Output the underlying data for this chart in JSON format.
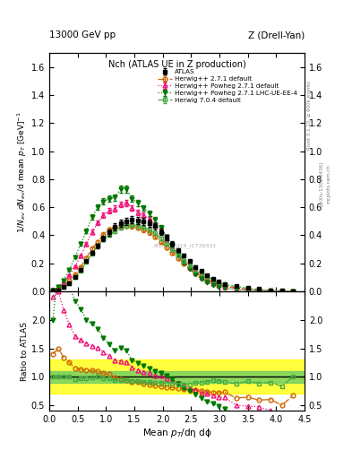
{
  "title_top": "13000 GeV pp",
  "title_right": "Z (Drell-Yan)",
  "panel_title": "Nch (ATLAS UE in Z production)",
  "xlabel": "Mean $p_T$/dη dϕ",
  "ylabel_main": "$1/N_{ev}$ $dN_{ev}$/d mean $p_T$ [GeV]$^{-1}$",
  "ylabel_ratio": "Ratio to ATLAS",
  "watermark": "ATLAS_2019_I1736531",
  "rivet_label": "Rivet 3.1.10, ≥ 600k events",
  "arxiv_label": "[arXiv:1306.3436]",
  "mcplots_label": "mcplots.cern.ch",
  "xlim": [
    0,
    4.5
  ],
  "ylim_main": [
    0,
    1.7
  ],
  "ylim_ratio": [
    0.4,
    2.5
  ],
  "atlas_x": [
    0.065,
    0.16,
    0.255,
    0.355,
    0.455,
    0.555,
    0.655,
    0.755,
    0.855,
    0.955,
    1.055,
    1.155,
    1.26,
    1.36,
    1.46,
    1.56,
    1.665,
    1.765,
    1.865,
    1.97,
    2.07,
    2.17,
    2.275,
    2.375,
    2.475,
    2.58,
    2.68,
    2.785,
    2.885,
    2.99,
    3.095,
    3.295,
    3.5,
    3.7,
    3.9,
    4.1,
    4.3
  ],
  "atlas_y": [
    0.005,
    0.01,
    0.03,
    0.06,
    0.105,
    0.155,
    0.215,
    0.275,
    0.325,
    0.38,
    0.42,
    0.46,
    0.485,
    0.5,
    0.51,
    0.505,
    0.5,
    0.485,
    0.465,
    0.425,
    0.385,
    0.34,
    0.295,
    0.255,
    0.215,
    0.175,
    0.145,
    0.115,
    0.09,
    0.07,
    0.055,
    0.04,
    0.025,
    0.017,
    0.01,
    0.006,
    0.003
  ],
  "hw271_x": [
    0.065,
    0.16,
    0.255,
    0.355,
    0.455,
    0.555,
    0.655,
    0.755,
    0.855,
    0.955,
    1.055,
    1.155,
    1.26,
    1.36,
    1.46,
    1.56,
    1.665,
    1.765,
    1.865,
    1.97,
    2.07,
    2.17,
    2.275,
    2.375,
    2.475,
    2.58,
    2.68,
    2.785,
    2.885,
    2.99,
    3.095,
    3.295,
    3.5,
    3.7,
    3.9,
    4.1,
    4.3
  ],
  "hw271_y": [
    0.007,
    0.015,
    0.04,
    0.075,
    0.12,
    0.175,
    0.24,
    0.305,
    0.355,
    0.405,
    0.44,
    0.455,
    0.465,
    0.47,
    0.465,
    0.455,
    0.44,
    0.42,
    0.39,
    0.355,
    0.315,
    0.275,
    0.235,
    0.2,
    0.165,
    0.135,
    0.11,
    0.085,
    0.065,
    0.05,
    0.04,
    0.025,
    0.016,
    0.01,
    0.006,
    0.003,
    0.002
  ],
  "hw271p_x": [
    0.065,
    0.16,
    0.255,
    0.355,
    0.455,
    0.555,
    0.655,
    0.755,
    0.855,
    0.955,
    1.055,
    1.155,
    1.26,
    1.36,
    1.46,
    1.56,
    1.665,
    1.765,
    1.865,
    1.97,
    2.07,
    2.17,
    2.275,
    2.375,
    2.475,
    2.58,
    2.68,
    2.785,
    2.885,
    2.99,
    3.095,
    3.295,
    3.5,
    3.7,
    3.9,
    4.1,
    4.3
  ],
  "hw271p_y": [
    0.012,
    0.025,
    0.065,
    0.115,
    0.18,
    0.255,
    0.34,
    0.425,
    0.49,
    0.545,
    0.575,
    0.59,
    0.62,
    0.63,
    0.595,
    0.565,
    0.545,
    0.515,
    0.475,
    0.43,
    0.375,
    0.32,
    0.265,
    0.215,
    0.17,
    0.135,
    0.105,
    0.08,
    0.06,
    0.045,
    0.035,
    0.02,
    0.012,
    0.008,
    0.004,
    0.002,
    0.001
  ],
  "hw271lhc_x": [
    0.065,
    0.16,
    0.255,
    0.355,
    0.455,
    0.555,
    0.655,
    0.755,
    0.855,
    0.955,
    1.055,
    1.155,
    1.26,
    1.36,
    1.46,
    1.56,
    1.665,
    1.765,
    1.865,
    1.97,
    2.07,
    2.17,
    2.275,
    2.375,
    2.475,
    2.58,
    2.68,
    2.785,
    2.885,
    2.99,
    3.095,
    3.295,
    3.5,
    3.7,
    3.9,
    4.1,
    4.3
  ],
  "hw271lhc_y": [
    0.01,
    0.03,
    0.08,
    0.155,
    0.245,
    0.34,
    0.43,
    0.53,
    0.6,
    0.64,
    0.66,
    0.67,
    0.73,
    0.73,
    0.66,
    0.63,
    0.595,
    0.555,
    0.51,
    0.455,
    0.39,
    0.325,
    0.26,
    0.205,
    0.16,
    0.12,
    0.09,
    0.065,
    0.048,
    0.034,
    0.024,
    0.013,
    0.007,
    0.004,
    0.002,
    0.001,
    0.0005
  ],
  "hw704_x": [
    0.065,
    0.16,
    0.255,
    0.355,
    0.455,
    0.555,
    0.655,
    0.755,
    0.855,
    0.955,
    1.055,
    1.155,
    1.26,
    1.36,
    1.46,
    1.56,
    1.665,
    1.765,
    1.865,
    1.97,
    2.07,
    2.17,
    2.275,
    2.375,
    2.475,
    2.58,
    2.68,
    2.785,
    2.885,
    2.99,
    3.095,
    3.295,
    3.5,
    3.7,
    3.9,
    4.1,
    4.3
  ],
  "hw704_y": [
    0.005,
    0.01,
    0.03,
    0.06,
    0.1,
    0.15,
    0.21,
    0.27,
    0.325,
    0.37,
    0.405,
    0.43,
    0.455,
    0.47,
    0.475,
    0.47,
    0.455,
    0.44,
    0.415,
    0.38,
    0.34,
    0.3,
    0.255,
    0.22,
    0.185,
    0.155,
    0.13,
    0.105,
    0.085,
    0.065,
    0.05,
    0.035,
    0.023,
    0.015,
    0.009,
    0.005,
    0.003
  ],
  "atlas_color": "#000000",
  "hw271_color": "#cc6600",
  "hw271p_color": "#ee1177",
  "hw271lhc_color": "#007700",
  "hw704_color": "#44aa44",
  "band_yellow": [
    0.7,
    1.3
  ],
  "band_green": [
    0.9,
    1.1
  ],
  "yticks_main": [
    0.0,
    0.2,
    0.4,
    0.6,
    0.8,
    1.0,
    1.2,
    1.4,
    1.6
  ],
  "yticks_ratio": [
    0.5,
    1.0,
    1.5,
    2.0
  ]
}
